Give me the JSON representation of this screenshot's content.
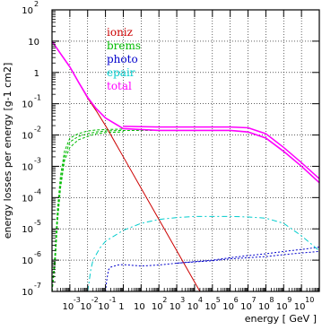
{
  "chart_data": {
    "type": "line",
    "title": "",
    "xlabel": "energy [ GeV ]",
    "ylabel": "energy losses per energy [g-1 cm2]",
    "xscale": "log",
    "yscale": "log",
    "xlim": [
      0.0001,
      100000000000.0
    ],
    "ylim": [
      1e-07,
      100
    ],
    "grid": true,
    "legend_position": "top-center",
    "x_ticks": [
      {
        "base": "10",
        "exp": "-3"
      },
      {
        "base": "10",
        "exp": "-2"
      },
      {
        "base": "10",
        "exp": "-1"
      },
      {
        "base": "1",
        "exp": ""
      },
      {
        "base": "10",
        "exp": ""
      },
      {
        "base": "10",
        "exp": "2"
      },
      {
        "base": "10",
        "exp": "3"
      },
      {
        "base": "10",
        "exp": "4"
      },
      {
        "base": "10",
        "exp": "5"
      },
      {
        "base": "10",
        "exp": "6"
      },
      {
        "base": "10",
        "exp": "7"
      },
      {
        "base": "10",
        "exp": "8"
      },
      {
        "base": "10",
        "exp": "9"
      },
      {
        "base": "10",
        "exp": "10"
      }
    ],
    "y_ticks": [
      {
        "base": "10",
        "exp": "2"
      },
      {
        "base": "10",
        "exp": ""
      },
      {
        "base": "1",
        "exp": ""
      },
      {
        "base": "10",
        "exp": "-1"
      },
      {
        "base": "10",
        "exp": "-2"
      },
      {
        "base": "10",
        "exp": "-3"
      },
      {
        "base": "10",
        "exp": "-4"
      },
      {
        "base": "10",
        "exp": "-5"
      },
      {
        "base": "10",
        "exp": "-6"
      },
      {
        "base": "10",
        "exp": "-7"
      }
    ],
    "series": [
      {
        "name": "ioniz",
        "color": "#cc0000",
        "dash": "",
        "x": [
          0.0001,
          0.0003,
          0.001,
          0.003,
          0.01,
          0.03,
          0.1,
          1,
          10,
          100,
          1000,
          10000,
          20000
        ],
        "y": [
          10,
          4,
          1.5,
          0.5,
          0.15,
          0.06,
          0.02,
          0.002,
          0.0002,
          2e-05,
          2e-06,
          2e-07,
          1e-07
        ]
      },
      {
        "name": "brems",
        "color": "#00bb00",
        "dash": "3,2",
        "x": [
          0.0001,
          0.00015,
          0.0002,
          0.0003,
          0.0005,
          0.001,
          0.003,
          0.01,
          0.03,
          0.1,
          1,
          100,
          10000,
          1000000,
          10000000,
          100000000,
          1000000000,
          10000000000,
          100000000000
        ],
        "y": [
          1e-07,
          1e-06,
          2e-05,
          0.0003,
          0.002,
          0.006,
          0.009,
          0.011,
          0.0125,
          0.0135,
          0.014,
          0.014,
          0.014,
          0.014,
          0.0125,
          0.008,
          0.003,
          0.001,
          0.0003
        ]
      },
      {
        "name": "photo",
        "color": "#0000cc",
        "dash": "2,2",
        "x": [
          0.1,
          0.12,
          0.15,
          0.2,
          0.5,
          1,
          10,
          100,
          1000,
          10000,
          100000,
          1000000,
          10000000,
          100000000,
          1000000000,
          10000000000,
          100000000000
        ],
        "y": [
          1e-07,
          2.5e-07,
          5e-07,
          6e-07,
          7e-07,
          7.2e-07,
          6.5e-07,
          7e-07,
          8e-07,
          9e-07,
          1e-06,
          1.2e-06,
          1.4e-06,
          1.6e-06,
          1.9e-06,
          2.2e-06,
          2.6e-06
        ]
      },
      {
        "name": "epair",
        "color": "#00cccc",
        "dash": "6,3,2,3",
        "x": [
          0.01,
          0.012,
          0.015,
          0.02,
          0.05,
          0.1,
          1,
          10,
          100,
          1000,
          10000,
          100000,
          1000000,
          10000000,
          100000000,
          1000000000,
          10000000000,
          100000000000
        ],
        "y": [
          1e-07,
          2e-07,
          5e-07,
          1e-06,
          2.5e-06,
          4e-06,
          9e-06,
          1.5e-05,
          2e-05,
          2.3e-05,
          2.5e-05,
          2.5e-05,
          2.5e-05,
          2.4e-05,
          2.2e-05,
          1.5e-05,
          6e-06,
          2e-06
        ]
      },
      {
        "name": "total",
        "color": "#ff00ff",
        "dash": "",
        "x": [
          0.0001,
          0.0003,
          0.001,
          0.003,
          0.01,
          0.03,
          0.1,
          1,
          100,
          10000,
          1000000,
          10000000,
          100000000,
          1000000000,
          10000000000,
          100000000000
        ],
        "y": [
          10,
          4,
          1.5,
          0.5,
          0.16,
          0.07,
          0.035,
          0.016,
          0.014,
          0.014,
          0.014,
          0.0125,
          0.008,
          0.003,
          0.001,
          0.0003
        ]
      }
    ],
    "extra_curves": [
      {
        "series": "brems",
        "color": "#00bb00",
        "dash": "3,2",
        "x": [
          0.0001,
          0.00015,
          0.0002,
          0.0003,
          0.0005,
          0.001,
          0.003,
          0.01,
          0.03,
          0.1,
          1
        ],
        "y": [
          1e-07,
          8e-07,
          1.5e-05,
          0.0002,
          0.0015,
          0.004,
          0.007,
          0.009,
          0.011,
          0.012,
          0.0125
        ]
      },
      {
        "series": "brems",
        "color": "#00bb00",
        "dash": "3,2",
        "x": [
          0.0001,
          0.00015,
          0.0002,
          0.0003,
          0.0005,
          0.001,
          0.003,
          0.01,
          0.03,
          0.1,
          1
        ],
        "y": [
          1e-07,
          2e-06,
          4e-05,
          0.0005,
          0.003,
          0.008,
          0.011,
          0.0135,
          0.0145,
          0.015,
          0.0155
        ]
      },
      {
        "series": "photo",
        "color": "#0000cc",
        "dash": "2,2",
        "x": [
          1000,
          10000,
          100000,
          1000000,
          10000000,
          100000000,
          1000000000,
          10000000000,
          100000000000
        ],
        "y": [
          8e-07,
          8.8e-07,
          9.6e-07,
          1.1e-06,
          1.2e-06,
          1.3e-06,
          1.5e-06,
          1.7e-06,
          1.9e-06
        ]
      },
      {
        "series": "total",
        "color": "#ff00ff",
        "dash": "",
        "x": [
          1,
          100,
          10000,
          1000000,
          10000000,
          100000000,
          1000000000,
          10000000000,
          100000000000
        ],
        "y": [
          0.019,
          0.018,
          0.018,
          0.018,
          0.017,
          0.011,
          0.004,
          0.0013,
          0.0004
        ]
      }
    ]
  }
}
